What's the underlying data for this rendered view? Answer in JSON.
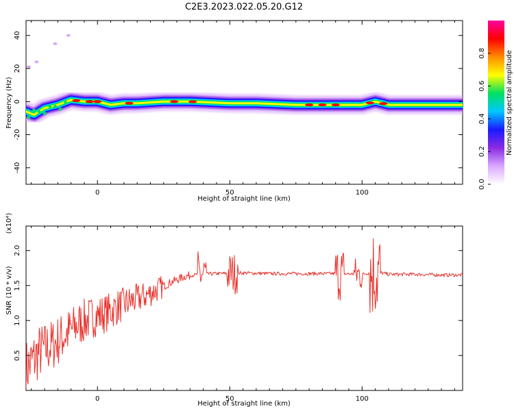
{
  "title": "C2E3.2023.022.05.20.G12",
  "colors": {
    "snr_line": "#e8302a",
    "axis": "#000000",
    "colormap": [
      "#ffffff",
      "#d9a8ff",
      "#8a2be2",
      "#1a1aff",
      "#00c8ff",
      "#00e060",
      "#ffff00",
      "#ff8c00",
      "#ff0000",
      "#ff00a0"
    ]
  },
  "chart_data": [
    {
      "type": "heatmap",
      "name": "spectrogram",
      "xlabel": "Height of straight line (km)",
      "ylabel": "Frequency (Hz)",
      "xlim": [
        -27,
        138
      ],
      "ylim": [
        -50,
        49
      ],
      "xticks": [
        0,
        50,
        100
      ],
      "yticks": [
        -40,
        -20,
        0,
        20,
        40
      ],
      "colorbar": {
        "label": "Normalized spectral amplitude",
        "range": [
          0,
          1
        ],
        "ticks": [
          "0.0",
          "0.2",
          "0.4",
          "0.6",
          "0.8"
        ]
      },
      "ridge": [
        {
          "x": -27,
          "y": -6
        },
        {
          "x": -24,
          "y": -8
        },
        {
          "x": -20,
          "y": -4
        },
        {
          "x": -15,
          "y": -2
        },
        {
          "x": -10,
          "y": 1
        },
        {
          "x": -5,
          "y": 0
        },
        {
          "x": 0,
          "y": 0
        },
        {
          "x": 5,
          "y": -2
        },
        {
          "x": 10,
          "y": -1
        },
        {
          "x": 15,
          "y": -1
        },
        {
          "x": 25,
          "y": 0
        },
        {
          "x": 35,
          "y": 0
        },
        {
          "x": 50,
          "y": -1
        },
        {
          "x": 60,
          "y": -1
        },
        {
          "x": 75,
          "y": -2
        },
        {
          "x": 90,
          "y": -2
        },
        {
          "x": 100,
          "y": -2
        },
        {
          "x": 105,
          "y": 0
        },
        {
          "x": 110,
          "y": -2
        },
        {
          "x": 125,
          "y": -2
        },
        {
          "x": 138,
          "y": -2
        }
      ],
      "outliers": [
        {
          "x": -26,
          "y": 21
        },
        {
          "x": -23,
          "y": 24
        },
        {
          "x": -16,
          "y": 35
        },
        {
          "x": -11,
          "y": 40
        }
      ]
    },
    {
      "type": "line",
      "name": "snr",
      "xlabel": "Height of straight line (km)",
      "ylabel": "SNR (10 * v/v)",
      "y_multiplier": "(x10⁴)",
      "xlim": [
        -27,
        138
      ],
      "ylim": [
        0,
        2.35
      ],
      "xticks": [
        0,
        50,
        100
      ],
      "yticks": [
        "0.5",
        "1.0",
        "1.5",
        "2.0"
      ],
      "series": [
        {
          "values": [
            {
              "x": -27,
              "y": 0.3
            },
            {
              "x": -22,
              "y": 0.55
            },
            {
              "x": -17,
              "y": 0.65
            },
            {
              "x": -12,
              "y": 0.8
            },
            {
              "x": -7,
              "y": 0.95
            },
            {
              "x": -2,
              "y": 1.05
            },
            {
              "x": 3,
              "y": 1.1
            },
            {
              "x": 8,
              "y": 1.2
            },
            {
              "x": 13,
              "y": 1.28
            },
            {
              "x": 18,
              "y": 1.35
            },
            {
              "x": 23,
              "y": 1.45
            },
            {
              "x": 28,
              "y": 1.55
            },
            {
              "x": 33,
              "y": 1.63
            },
            {
              "x": 38,
              "y": 1.66
            },
            {
              "x": 45,
              "y": 1.67
            },
            {
              "x": 55,
              "y": 1.68
            },
            {
              "x": 65,
              "y": 1.67
            },
            {
              "x": 75,
              "y": 1.67
            },
            {
              "x": 85,
              "y": 1.67
            },
            {
              "x": 92,
              "y": 1.67
            },
            {
              "x": 100,
              "y": 1.66
            },
            {
              "x": 105,
              "y": 1.7
            },
            {
              "x": 110,
              "y": 1.66
            },
            {
              "x": 120,
              "y": 1.66
            },
            {
              "x": 130,
              "y": 1.65
            },
            {
              "x": 138,
              "y": 1.65
            }
          ]
        }
      ]
    }
  ]
}
